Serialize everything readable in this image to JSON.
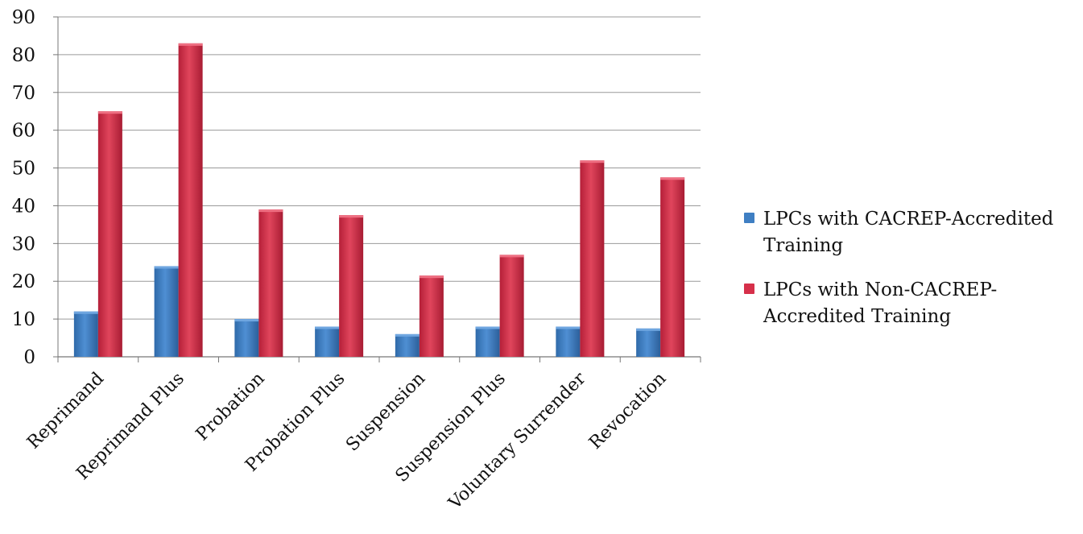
{
  "chart_data": {
    "type": "bar",
    "categories": [
      "Reprimand",
      "Reprimand Plus",
      "Probation",
      "Probation Plus",
      "Suspension",
      "Suspension Plus",
      "Voluntary Surrender",
      "Revocation"
    ],
    "series": [
      {
        "name": "LPCs with CACREP-Accredited Training",
        "values": [
          12,
          24,
          10,
          8,
          6,
          8,
          8,
          7.5
        ],
        "color": "#3f7fc3"
      },
      {
        "name": "LPCs with Non-CACREP-Accredited Training",
        "values": [
          65,
          83,
          39,
          37.5,
          21.5,
          27,
          52,
          47.5
        ],
        "color": "#d6304a"
      }
    ],
    "ylim": [
      0,
      90
    ],
    "yticks": [
      0,
      10,
      20,
      30,
      40,
      50,
      60,
      70,
      80,
      90
    ],
    "grid": true,
    "legend_position": "right",
    "title": "",
    "xlabel": "",
    "ylabel": ""
  }
}
